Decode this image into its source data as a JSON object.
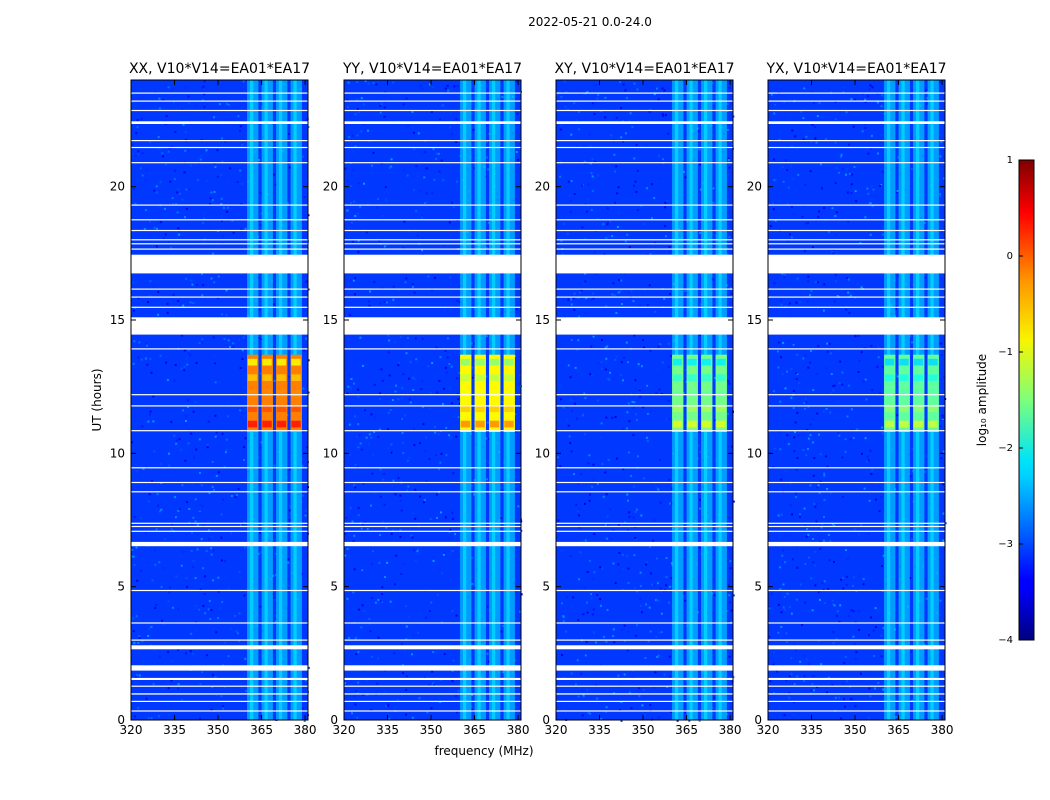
{
  "figure": {
    "suptitle": "2022-05-21 0.0-24.0"
  },
  "chart_data": {
    "type": "heatmap",
    "xlabel": "frequency (MHz)",
    "ylabel": "UT (hours)",
    "xlim": [
      320,
      381
    ],
    "ylim": [
      0,
      24
    ],
    "xticks": [
      320,
      335,
      350,
      365,
      380
    ],
    "yticks": [
      0,
      5,
      10,
      15,
      20
    ],
    "panels": [
      {
        "title": "XX, V10*V14=EA01*EA17",
        "polarization": "XX",
        "peak_log_amp": 0.3
      },
      {
        "title": "YY, V10*V14=EA01*EA17",
        "polarization": "YY",
        "peak_log_amp": -0.3
      },
      {
        "title": "XY, V10*V14=EA01*EA17",
        "polarization": "XY",
        "peak_log_amp": -1.0
      },
      {
        "title": "YX, V10*V14=EA01*EA17",
        "polarization": "YX",
        "peak_log_amp": -1.1
      }
    ],
    "rfi_band_mhz": [
      360,
      380
    ],
    "strong_rfi_ut_hours": [
      10.8,
      13.7
    ],
    "flagged_ut_hours": [
      [
        0.33,
        0.36
      ],
      [
        0.68,
        0.72
      ],
      [
        0.95,
        1.0
      ],
      [
        1.25,
        1.29
      ],
      [
        1.5,
        1.58
      ],
      [
        1.85,
        2.05
      ],
      [
        2.65,
        2.8
      ],
      [
        2.98,
        3.02
      ],
      [
        3.62,
        3.66
      ],
      [
        4.85,
        4.88
      ],
      [
        6.52,
        6.68
      ],
      [
        7.07,
        7.1
      ],
      [
        7.25,
        7.28
      ],
      [
        7.37,
        7.4
      ],
      [
        8.55,
        8.58
      ],
      [
        8.9,
        8.93
      ],
      [
        9.45,
        9.48
      ],
      [
        10.83,
        10.87
      ],
      [
        11.76,
        11.8
      ],
      [
        12.18,
        12.22
      ],
      [
        13.9,
        13.94
      ],
      [
        14.45,
        15.1
      ],
      [
        15.47,
        15.5
      ],
      [
        15.85,
        15.88
      ],
      [
        16.15,
        16.18
      ],
      [
        16.75,
        17.45
      ],
      [
        17.65,
        17.68
      ],
      [
        17.85,
        17.88
      ],
      [
        18.0,
        18.03
      ],
      [
        18.35,
        18.38
      ],
      [
        18.75,
        18.78
      ],
      [
        19.3,
        19.33
      ],
      [
        20.88,
        20.92
      ],
      [
        21.45,
        21.49
      ],
      [
        21.72,
        21.75
      ],
      [
        22.35,
        22.45
      ],
      [
        22.85,
        22.88
      ],
      [
        23.2,
        23.23
      ],
      [
        23.5,
        23.53
      ]
    ],
    "colorbar": {
      "label": "log₁₀ amplitude",
      "min": -4,
      "max": 1,
      "ticks": [
        1,
        0,
        -1,
        -2,
        -3,
        -4
      ]
    }
  }
}
